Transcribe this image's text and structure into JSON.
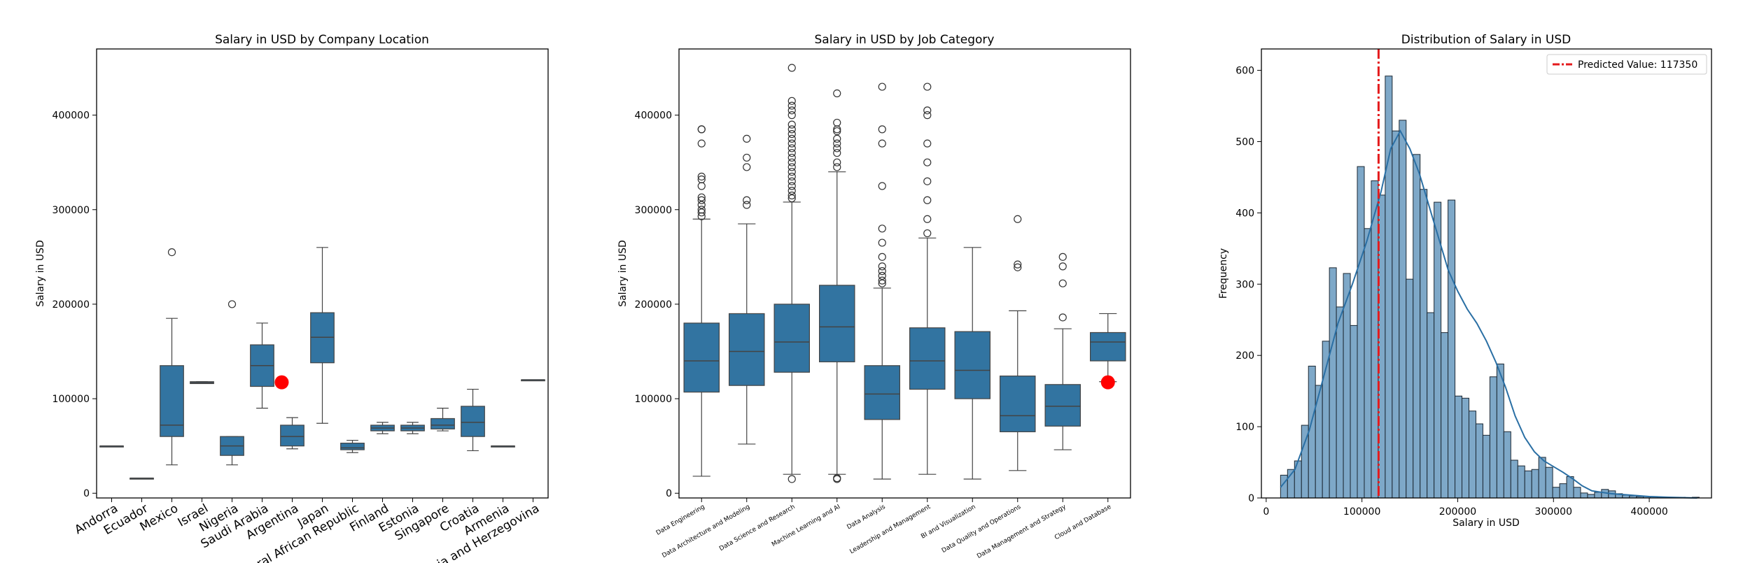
{
  "colors": {
    "box": "#3274a1",
    "kde": "#2a6fa4",
    "hist": "#7ea8c8",
    "marker": "#ff0000",
    "predicted": "#e41a1c"
  },
  "chart_data": [
    {
      "type": "box",
      "title": "Salary in USD by Company Location",
      "xlabel": "",
      "ylabel": "Salary in USD",
      "ylim": [
        -5000,
        470000
      ],
      "yticks": [
        0,
        100000,
        200000,
        300000,
        400000
      ],
      "categories": [
        "Andorra",
        "Ecuador",
        "Mexico",
        "Israel",
        "Nigeria",
        "Saudi Arabia",
        "Argentina",
        "Japan",
        "Central African Republic",
        "Finland",
        "Estonia",
        "Singapore",
        "Croatia",
        "Armenia",
        "Bosnia and Herzegovina"
      ],
      "tick_labels": [
        "Andorra",
        "Ecuador",
        "Mexico",
        "Israel",
        "Nigeria",
        "Saudi Arabia",
        "Argentina",
        "Japan",
        "ral African Republic",
        "Finland",
        "Estonia",
        "Singapore",
        "Croatia",
        "Armenia",
        "ia and Herzegovina"
      ],
      "boxes": [
        {
          "category": "Andorra",
          "q1": 50000,
          "median": 50000,
          "q3": 50000,
          "wlow": 50000,
          "whigh": 50000,
          "outliers": []
        },
        {
          "category": "Ecuador",
          "q1": 16000,
          "median": 16000,
          "q3": 16000,
          "wlow": 16000,
          "whigh": 16000,
          "outliers": []
        },
        {
          "category": "Mexico",
          "q1": 60000,
          "median": 72000,
          "q3": 135000,
          "wlow": 30000,
          "whigh": 185000,
          "outliers": [
            255000
          ]
        },
        {
          "category": "Israel",
          "q1": 116000,
          "median": 117000,
          "q3": 118000,
          "wlow": 116000,
          "whigh": 118000,
          "outliers": []
        },
        {
          "category": "Nigeria",
          "q1": 40000,
          "median": 50000,
          "q3": 60000,
          "wlow": 30000,
          "whigh": 60000,
          "outliers": [
            200000
          ]
        },
        {
          "category": "Saudi Arabia",
          "q1": 113000,
          "median": 135000,
          "q3": 157000,
          "wlow": 90000,
          "whigh": 180000,
          "outliers": []
        },
        {
          "category": "Argentina",
          "q1": 50000,
          "median": 60000,
          "q3": 72000,
          "wlow": 47000,
          "whigh": 80000,
          "outliers": []
        },
        {
          "category": "Japan",
          "q1": 138000,
          "median": 165000,
          "q3": 191000,
          "wlow": 74000,
          "whigh": 260000,
          "outliers": []
        },
        {
          "category": "Central African Republic",
          "q1": 46000,
          "median": 48000,
          "q3": 53000,
          "wlow": 43000,
          "whigh": 56000,
          "outliers": []
        },
        {
          "category": "Finland",
          "q1": 66000,
          "median": 69000,
          "q3": 72000,
          "wlow": 63000,
          "whigh": 75000,
          "outliers": []
        },
        {
          "category": "Estonia",
          "q1": 66000,
          "median": 69000,
          "q3": 72000,
          "wlow": 63000,
          "whigh": 75000,
          "outliers": []
        },
        {
          "category": "Singapore",
          "q1": 68000,
          "median": 72000,
          "q3": 79000,
          "wlow": 66000,
          "whigh": 90000,
          "outliers": []
        },
        {
          "category": "Croatia",
          "q1": 60000,
          "median": 75000,
          "q3": 92000,
          "wlow": 45000,
          "whigh": 110000,
          "outliers": []
        },
        {
          "category": "Armenia",
          "q1": 50000,
          "median": 50000,
          "q3": 50000,
          "wlow": 50000,
          "whigh": 50000,
          "outliers": []
        },
        {
          "category": "Bosnia and Herzegovina",
          "q1": 120000,
          "median": 120000,
          "q3": 120000,
          "wlow": 120000,
          "whigh": 120000,
          "outliers": []
        }
      ],
      "marker": {
        "category": "Argentina",
        "position": 5.65,
        "value": 117350
      }
    },
    {
      "type": "box",
      "title": "Salary in USD by Job Category",
      "xlabel": "",
      "ylabel": "Salary in USD",
      "ylim": [
        -5000,
        470000
      ],
      "yticks": [
        0,
        100000,
        200000,
        300000,
        400000
      ],
      "categories": [
        "Data Engineering",
        "Data Architecture and Modeling",
        "Data Science and Research",
        "Machine Learning and AI",
        "Data Analysis",
        "Leadership and Management",
        "BI and Visualization",
        "Data Quality and Operations",
        "Data Management and Strategy",
        "Cloud and Database"
      ],
      "boxes": [
        {
          "category": "Data Engineering",
          "q1": 107000,
          "median": 140000,
          "q3": 180000,
          "wlow": 18000,
          "whigh": 290000,
          "outliers": [
            385000,
            385000,
            370000,
            335000,
            332000,
            325000,
            313000,
            310000,
            305000,
            300000,
            297000,
            293000
          ]
        },
        {
          "category": "Data Architecture and Modeling",
          "q1": 114000,
          "median": 150000,
          "q3": 190000,
          "wlow": 52000,
          "whigh": 285000,
          "outliers": [
            375000,
            355000,
            345000,
            310000,
            305000
          ]
        },
        {
          "category": "Data Science and Research",
          "q1": 128000,
          "median": 160000,
          "q3": 200000,
          "wlow": 20000,
          "whigh": 308000,
          "outliers": [
            15000,
            450000,
            415000,
            410000,
            405000,
            400000,
            390000,
            385000,
            380000,
            375000,
            370000,
            365000,
            360000,
            355000,
            350000,
            345000,
            340000,
            335000,
            330000,
            325000,
            320000,
            315000,
            312000
          ]
        },
        {
          "category": "Machine Learning and AI",
          "q1": 139000,
          "median": 176000,
          "q3": 220000,
          "wlow": 20000,
          "whigh": 340000,
          "outliers": [
            15000,
            16000,
            423000,
            392000,
            385000,
            383000,
            375000,
            370000,
            365000,
            360000,
            350000,
            345000
          ]
        },
        {
          "category": "Data Analysis",
          "q1": 78000,
          "median": 105000,
          "q3": 135000,
          "wlow": 15000,
          "whigh": 217000,
          "outliers": [
            430000,
            385000,
            370000,
            325000,
            280000,
            265000,
            250000,
            240000,
            235000,
            230000,
            225000,
            222000
          ]
        },
        {
          "category": "Leadership and Management",
          "q1": 110000,
          "median": 140000,
          "q3": 175000,
          "wlow": 20000,
          "whigh": 270000,
          "outliers": [
            430000,
            405000,
            400000,
            370000,
            350000,
            330000,
            310000,
            290000,
            275000
          ]
        },
        {
          "category": "BI and Visualization",
          "q1": 100000,
          "median": 130000,
          "q3": 171000,
          "wlow": 15000,
          "whigh": 260000,
          "outliers": []
        },
        {
          "category": "Data Quality and Operations",
          "q1": 65000,
          "median": 82000,
          "q3": 124000,
          "wlow": 24000,
          "whigh": 193000,
          "outliers": [
            290000,
            242000,
            239000
          ]
        },
        {
          "category": "Data Management and Strategy",
          "q1": 71000,
          "median": 92000,
          "q3": 115000,
          "wlow": 46000,
          "whigh": 174000,
          "outliers": [
            250000,
            240000,
            222000,
            186000
          ]
        },
        {
          "category": "Cloud and Database",
          "q1": 140000,
          "median": 160000,
          "q3": 170000,
          "wlow": 118000,
          "whigh": 190000,
          "outliers": []
        }
      ],
      "marker": {
        "category": "Cloud and Database",
        "position": 9,
        "value": 117350
      }
    },
    {
      "type": "histogram",
      "title": "Distribution of Salary in USD",
      "xlabel": "Salary in USD",
      "ylabel": "Frequency",
      "xlim": [
        -5000,
        465000
      ],
      "ylim": [
        0,
        630
      ],
      "xticks": [
        0,
        100000,
        200000,
        300000,
        400000
      ],
      "yticks": [
        0,
        100,
        200,
        300,
        400,
        500,
        600
      ],
      "bin_start": 15000,
      "bin_width": 7286,
      "counts": [
        32,
        40,
        52,
        102,
        185,
        158,
        220,
        323,
        268,
        315,
        242,
        465,
        378,
        445,
        425,
        592,
        515,
        530,
        307,
        482,
        433,
        260,
        415,
        232,
        418,
        143,
        140,
        122,
        104,
        88,
        170,
        188,
        93,
        53,
        45,
        38,
        40,
        57,
        43,
        15,
        20,
        30,
        15,
        7,
        5,
        8,
        12,
        10,
        6,
        4,
        3,
        2,
        2,
        2,
        1,
        1,
        1,
        1,
        0,
        1
      ],
      "kde": [
        [
          15000,
          15
        ],
        [
          30000,
          40
        ],
        [
          45000,
          95
        ],
        [
          60000,
          170
        ],
        [
          75000,
          245
        ],
        [
          90000,
          300
        ],
        [
          105000,
          360
        ],
        [
          120000,
          430
        ],
        [
          130000,
          490
        ],
        [
          140000,
          515
        ],
        [
          150000,
          490
        ],
        [
          160000,
          455
        ],
        [
          170000,
          410
        ],
        [
          180000,
          365
        ],
        [
          190000,
          320
        ],
        [
          200000,
          290
        ],
        [
          210000,
          265
        ],
        [
          220000,
          245
        ],
        [
          230000,
          220
        ],
        [
          240000,
          190
        ],
        [
          250000,
          155
        ],
        [
          260000,
          115
        ],
        [
          270000,
          85
        ],
        [
          280000,
          65
        ],
        [
          290000,
          52
        ],
        [
          300000,
          44
        ],
        [
          310000,
          36
        ],
        [
          320000,
          27
        ],
        [
          330000,
          17
        ],
        [
          340000,
          10
        ],
        [
          360000,
          6
        ],
        [
          380000,
          4
        ],
        [
          400000,
          2
        ],
        [
          420000,
          1
        ],
        [
          450000,
          0
        ]
      ],
      "predicted_line": {
        "value": 117350,
        "label": "Predicted Value: 117350"
      }
    }
  ]
}
